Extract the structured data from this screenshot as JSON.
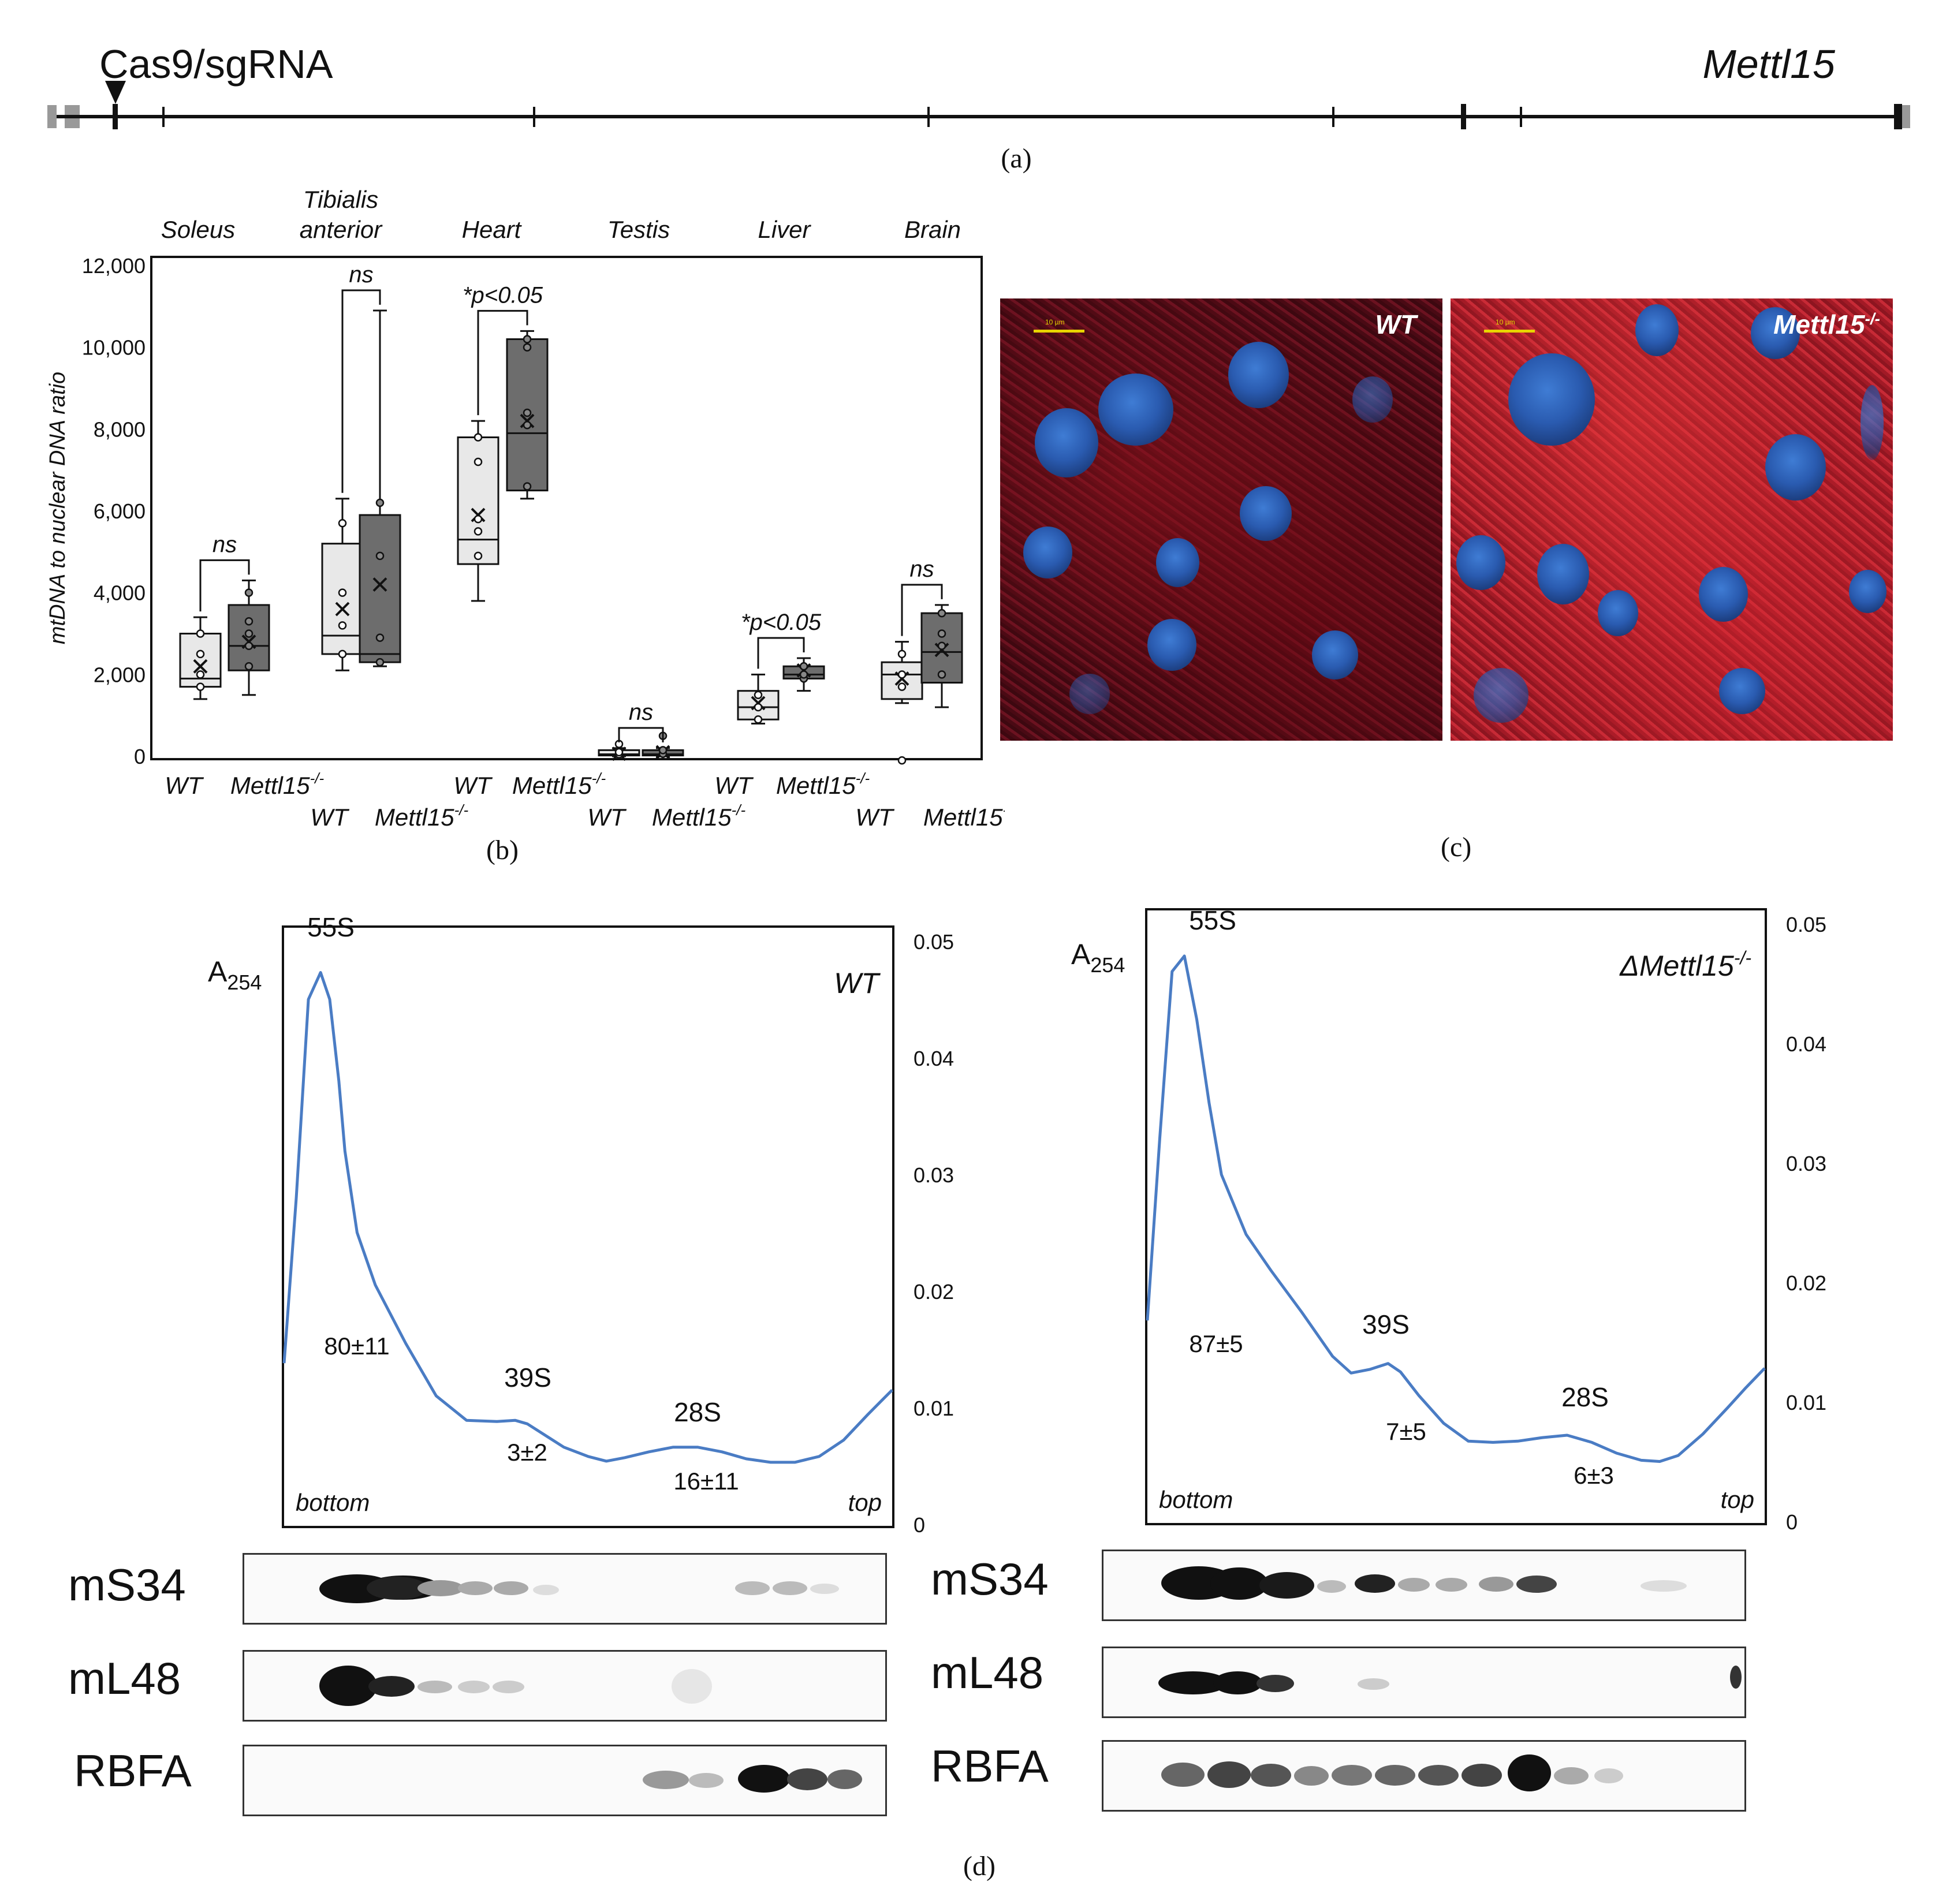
{
  "panel_a": {
    "label": "(a)",
    "cut_site_label": "Cas9/sgRNA",
    "gene_name": "Mettl15"
  },
  "panel_b": {
    "label": "(b)",
    "chart_data": {
      "type": "box",
      "ylabel": "mtDNA to nuclear DNA ratio",
      "ylim": [
        0,
        12000
      ],
      "yticks": [
        "0",
        "2,000",
        "4,000",
        "6,000",
        "8,000",
        "10,000",
        "12,000"
      ],
      "groups": [
        "WT",
        "Mettl15-/-"
      ],
      "tissues": [
        {
          "name": "Soleus",
          "significance": "ns",
          "WT": {
            "min": 1400,
            "q1": 1700,
            "median": 1900,
            "q3": 3000,
            "max": 3400,
            "mean": 2200,
            "points": [
              1700,
              2000,
              2500,
              3000
            ]
          },
          "KO": {
            "min": 1500,
            "q1": 2100,
            "median": 2700,
            "q3": 3700,
            "max": 4300,
            "mean": 2800,
            "points": [
              2200,
              2700,
              3000,
              3300,
              4000
            ]
          }
        },
        {
          "name": "Tibialis anterior",
          "significance": "ns",
          "WT": {
            "min": 2100,
            "q1": 2500,
            "median": 2950,
            "q3": 5200,
            "max": 6300,
            "mean": 3600,
            "points": [
              2500,
              3200,
              4000,
              5700
            ]
          },
          "KO": {
            "min": 2200,
            "q1": 2300,
            "median": 2500,
            "q3": 5900,
            "max": 10900,
            "mean": 4200,
            "points": [
              2300,
              2900,
              4900,
              6200
            ]
          }
        },
        {
          "name": "Heart",
          "significance": "*p<0.05",
          "WT": {
            "min": 3800,
            "q1": 4700,
            "median": 5300,
            "q3": 7800,
            "max": 8200,
            "mean": 5900,
            "points": [
              4900,
              5500,
              5800,
              7200,
              7800
            ]
          },
          "KO": {
            "min": 6300,
            "q1": 6500,
            "median": 7900,
            "q3": 10200,
            "max": 10400,
            "mean": 8200,
            "points": [
              6600,
              8100,
              8400,
              10000,
              10200
            ]
          }
        },
        {
          "name": "Testis",
          "significance": "ns",
          "WT": {
            "min": 0,
            "q1": 20,
            "median": 50,
            "q3": 150,
            "max": 200,
            "mean": 60,
            "points": [
              50,
              100,
              300
            ]
          },
          "KO": {
            "min": 0,
            "q1": 20,
            "median": 50,
            "q3": 150,
            "max": 200,
            "mean": 100,
            "points": [
              60,
              150,
              500
            ]
          }
        },
        {
          "name": "Liver",
          "significance": "*p<0.05",
          "WT": {
            "min": 800,
            "q1": 900,
            "median": 1200,
            "q3": 1600,
            "max": 2000,
            "mean": 1300,
            "points": [
              900,
              1200,
              1500
            ]
          },
          "KO": {
            "min": 1600,
            "q1": 1900,
            "median": 2000,
            "q3": 2200,
            "max": 2400,
            "mean": 2100,
            "points": [
              1900,
              2000,
              2200
            ]
          }
        },
        {
          "name": "Brain",
          "significance": "ns",
          "WT": {
            "min": 1300,
            "q1": 1400,
            "median": 2000,
            "q3": 2300,
            "max": 2800,
            "mean": 1900,
            "points": [
              -100,
              1700,
              2000,
              2500
            ]
          },
          "KO": {
            "min": 1200,
            "q1": 1800,
            "median": 2550,
            "q3": 3500,
            "max": 3700,
            "mean": 2600,
            "points": [
              2000,
              2700,
              3000,
              3500
            ]
          }
        }
      ]
    }
  },
  "panel_c": {
    "label": "(c)",
    "images": [
      {
        "title": "WT",
        "scale": "10 µm"
      },
      {
        "title": "Mettl15",
        "title_sup": "-/-",
        "scale": "10 µm"
      }
    ]
  },
  "panel_d": {
    "label": "(d)",
    "chart_data": [
      {
        "type": "line",
        "title": "WT",
        "ylabel": "A",
        "ylabel_sub": "254",
        "ylim": [
          0,
          0.05
        ],
        "yticks": [
          "0",
          "0.01",
          "0.02",
          "0.03",
          "0.04",
          "0.05"
        ],
        "x_left": "bottom",
        "x_right": "top",
        "peaks": [
          {
            "name": "55S",
            "pct": "80±11"
          },
          {
            "name": "39S",
            "pct": "3±2"
          },
          {
            "name": "28S",
            "pct": "16±11"
          }
        ],
        "x": [
          0,
          0.02,
          0.04,
          0.06,
          0.075,
          0.09,
          0.1,
          0.12,
          0.15,
          0.2,
          0.25,
          0.3,
          0.35,
          0.38,
          0.4,
          0.43,
          0.46,
          0.5,
          0.53,
          0.56,
          0.6,
          0.64,
          0.68,
          0.72,
          0.76,
          0.8,
          0.84,
          0.88,
          0.92,
          0.96,
          1.0
        ],
        "y": [
          0.0138,
          0.028,
          0.045,
          0.0473,
          0.045,
          0.038,
          0.032,
          0.025,
          0.0205,
          0.0155,
          0.011,
          0.0089,
          0.0088,
          0.0089,
          0.0086,
          0.0076,
          0.0066,
          0.0058,
          0.0054,
          0.0057,
          0.0062,
          0.0066,
          0.0066,
          0.0062,
          0.0056,
          0.0053,
          0.0053,
          0.0058,
          0.0072,
          0.0094,
          0.0115
        ]
      },
      {
        "type": "line",
        "title": "ΔMettl15",
        "title_sup": "-/-",
        "ylabel": "A",
        "ylabel_sub": "254",
        "ylim": [
          0,
          0.05
        ],
        "yticks": [
          "0",
          "0.01",
          "0.02",
          "0.03",
          "0.04",
          "0.05"
        ],
        "x_left": "bottom",
        "x_right": "top",
        "peaks": [
          {
            "name": "55S",
            "pct": "87±5"
          },
          {
            "name": "39S",
            "pct": "7±5"
          },
          {
            "name": "28S",
            "pct": "6±3"
          }
        ],
        "x": [
          0,
          0.02,
          0.04,
          0.06,
          0.08,
          0.1,
          0.12,
          0.16,
          0.2,
          0.25,
          0.3,
          0.33,
          0.36,
          0.39,
          0.41,
          0.44,
          0.48,
          0.52,
          0.56,
          0.6,
          0.64,
          0.68,
          0.72,
          0.76,
          0.8,
          0.83,
          0.86,
          0.9,
          0.94,
          0.97,
          1.0
        ],
        "y": [
          0.0168,
          0.032,
          0.046,
          0.0473,
          0.042,
          0.035,
          0.029,
          0.024,
          0.021,
          0.0175,
          0.0138,
          0.0124,
          0.0127,
          0.0132,
          0.0125,
          0.0105,
          0.0082,
          0.0067,
          0.0066,
          0.0067,
          0.007,
          0.0072,
          0.0066,
          0.0057,
          0.0051,
          0.005,
          0.0055,
          0.0073,
          0.0095,
          0.0112,
          0.0128
        ]
      }
    ],
    "blots": {
      "rows": [
        "mS34",
        "mL48",
        "RBFA"
      ]
    }
  }
}
